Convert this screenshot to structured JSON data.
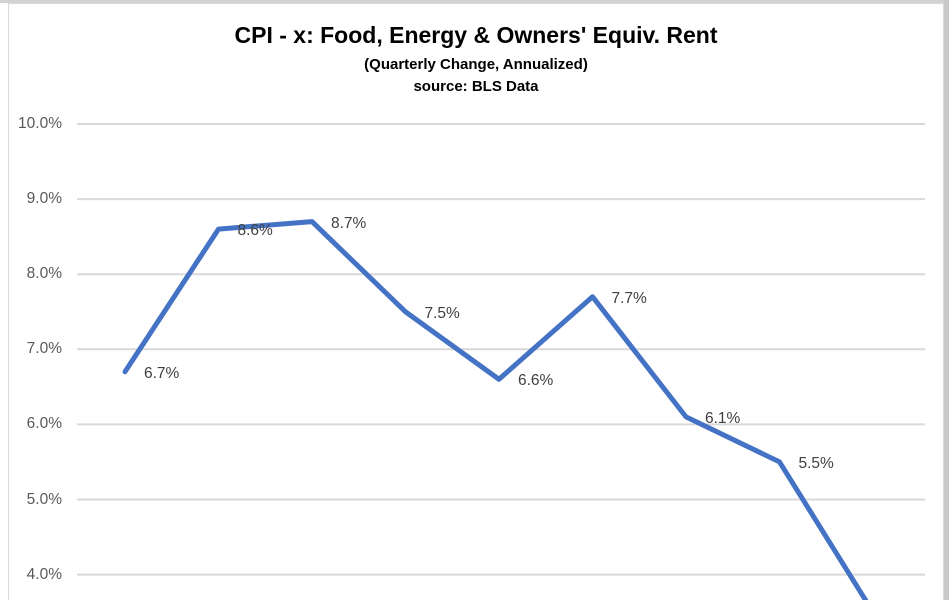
{
  "window": {
    "background": "#FFFFFF",
    "top_edge_strip_color": "#D2D2D2",
    "right_edge_strip_color": "#C8C8C8",
    "chart_frame_border_color": "#D9D9D9"
  },
  "chart_data": {
    "type": "line",
    "title": "CPI - x: Food, Energy & Owners' Equiv. Rent",
    "subtitle": "(Quarterly Change, Annualized)",
    "source_note": "source: BLS Data",
    "legend": "none",
    "grid": true,
    "x_axis": {
      "visible": false,
      "note": "x-axis category labels are cropped out of the screenshot"
    },
    "y_axis": {
      "unit": "percent",
      "tick_values": [
        10.0,
        9.0,
        8.0,
        7.0,
        6.0,
        5.0,
        4.0
      ],
      "tick_labels": [
        "10.0%",
        "9.0%",
        "8.0%",
        "7.0%",
        "6.0%",
        "5.0%",
        "4.0%"
      ],
      "visible_range_note": "chart area continues below 4.0% but is cropped at the bottom edge"
    },
    "series": [
      {
        "values_pct": [
          6.7,
          8.6,
          8.7,
          7.5,
          6.6,
          7.7,
          6.1,
          5.5
        ],
        "data_labels": [
          "6.7%",
          "8.6%",
          "8.7%",
          "7.5%",
          "6.6%",
          "7.7%",
          "6.1%",
          "5.5%"
        ],
        "offscreen_continuation": {
          "estimated_next_value_pct": 3.5,
          "note": "line continues steeply downward past the cropped bottom edge; its endpoint and label are not visible"
        }
      }
    ],
    "colors": {
      "line": "#4472C4",
      "gridline": "#D9D9D9",
      "axis_tick_label": "#595959",
      "data_label": "#404040",
      "title": "#000000"
    }
  }
}
